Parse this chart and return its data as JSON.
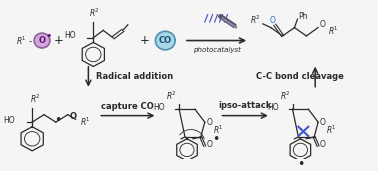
{
  "bg_color": "#f5f5f5",
  "figsize": [
    3.78,
    1.71
  ],
  "dpi": 100,
  "arrow_color": "#2a2a2a",
  "text_color": "#2a2a2a",
  "radical_fill": "#d4a8d8",
  "radical_edge": "#9060a0",
  "co_fill": "#a8d8e8",
  "co_edge": "#5090b0",
  "photocatalyst_color": "#3344bb",
  "bond_color": "#2a2a2a",
  "blue_bond": "#4455cc",
  "label_radical_addition": "Radical addition",
  "label_capture_co": "capture CO",
  "label_ipso_attack": "ipso-attack",
  "label_cc_cleavage": "C-C bond cleavage",
  "label_photocatalyst": "photocatalyst"
}
